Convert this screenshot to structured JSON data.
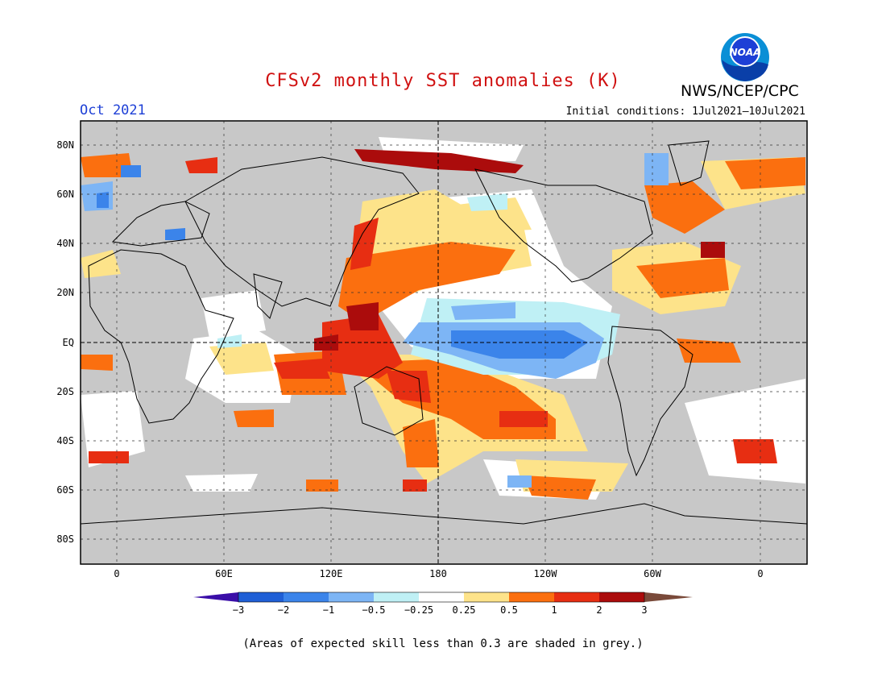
{
  "header": {
    "title": "CFSv2 monthly SST anomalies (K)",
    "month": "Oct 2021",
    "initial_conditions": "Initial conditions: 1Jul2021–10Jul2021",
    "organization": "NWS/NCEP/CPC",
    "logo_text": "NOAA"
  },
  "map": {
    "lat_labels": [
      "80N",
      "60N",
      "40N",
      "20N",
      "EQ",
      "20S",
      "40S",
      "60S",
      "80S"
    ],
    "lon_labels": [
      "0",
      "60E",
      "120E",
      "180",
      "120W",
      "60W",
      "0"
    ],
    "colors": {
      "land": "#c8c8c8",
      "ocean_neutral": "#ffffff",
      "grid": "#000000"
    }
  },
  "colorbar": {
    "ticks": [
      "−3",
      "−2",
      "−1",
      "−0.5",
      "−0.25",
      "0.25",
      "0.5",
      "1",
      "2",
      "3"
    ],
    "colors": [
      "#3a0ea8",
      "#1f5fd6",
      "#3b84ea",
      "#7db5f5",
      "#bff0f5",
      "#ffffff",
      "#fde38a",
      "#fb6f0f",
      "#e72e12",
      "#ab0c0c",
      "#7a4a3a"
    ]
  },
  "footnote": "(Areas of expected skill less than 0.3 are shaded in grey.)"
}
